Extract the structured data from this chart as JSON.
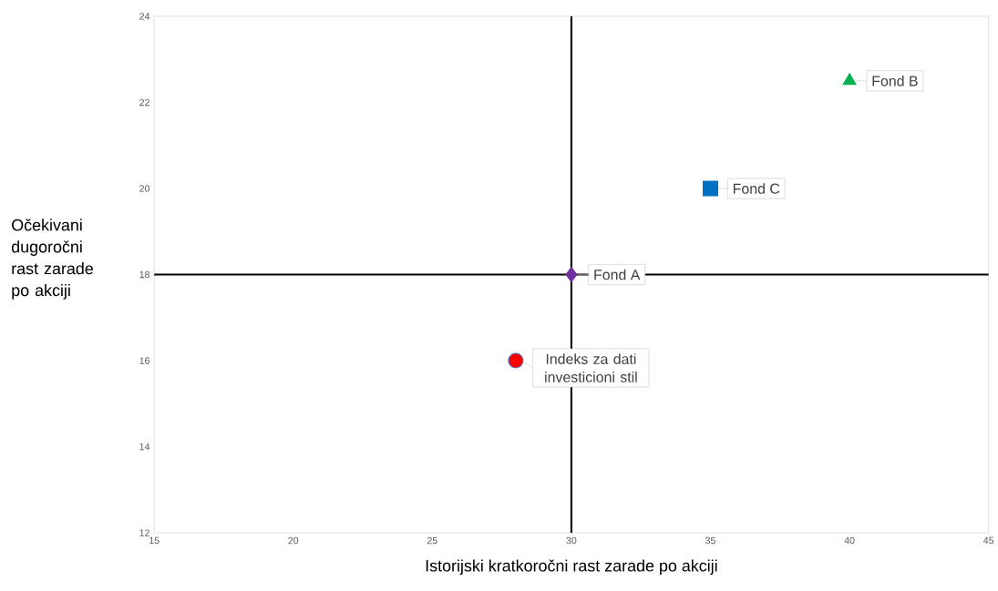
{
  "chart_data": {
    "type": "scatter",
    "xlabel": "Istorijski kratkoročni rast zarade po akciji",
    "ylabel": "Očekivani dugoročni rast zarade po akciji",
    "xlim": [
      15,
      45
    ],
    "xticks": [
      15,
      20,
      25,
      30,
      35,
      40,
      45
    ],
    "ylim": [
      12,
      24
    ],
    "yticks": [
      12,
      14,
      16,
      18,
      20,
      22,
      24
    ],
    "grid": false,
    "legend": false,
    "ref_lines": [
      {
        "axis": "x",
        "value": 30,
        "color": "#000000"
      },
      {
        "axis": "y",
        "value": 18,
        "color": "#000000"
      }
    ],
    "series": [
      {
        "name": "Indeks za dati investicioni stil",
        "color": "#ff0000",
        "marker": "circle",
        "x": [
          28
        ],
        "values": [
          16
        ]
      },
      {
        "name": "Fond A",
        "color": "#7030a0",
        "marker": "diamond",
        "x": [
          30
        ],
        "values": [
          18
        ]
      },
      {
        "name": "Fond C",
        "color": "#0070c0",
        "marker": "square",
        "x": [
          35
        ],
        "values": [
          20
        ]
      },
      {
        "name": "Fond B",
        "color": "#00b050",
        "marker": "triangle",
        "x": [
          40
        ],
        "values": [
          22.5
        ]
      }
    ]
  }
}
